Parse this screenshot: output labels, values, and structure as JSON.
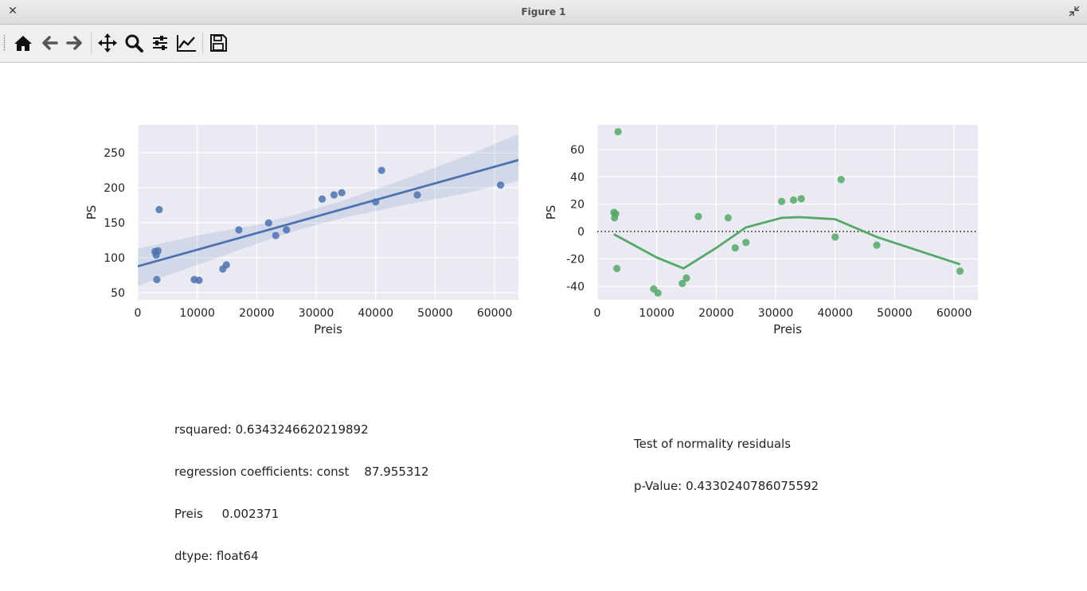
{
  "window": {
    "title": "Figure 1"
  },
  "toolbar": {
    "buttons": [
      {
        "name": "home-icon",
        "label": "Home"
      },
      {
        "name": "back-icon",
        "label": "Back"
      },
      {
        "name": "forward-icon",
        "label": "Forward"
      },
      {
        "name": "pan-icon",
        "label": "Pan"
      },
      {
        "name": "zoom-icon",
        "label": "Zoom"
      },
      {
        "name": "configure-subplots-icon",
        "label": "Subplots"
      },
      {
        "name": "edit-axis-icon",
        "label": "Customize"
      },
      {
        "name": "save-icon",
        "label": "Save"
      }
    ]
  },
  "colors": {
    "plot_bg": "#eaeaf2",
    "grid": "#ffffff",
    "blue": "#4c72b0",
    "green": "#55a868"
  },
  "chart_data": [
    {
      "type": "scatter",
      "title": "",
      "xlabel": "Preis",
      "ylabel": "PS",
      "xlim": [
        0,
        64000
      ],
      "ylim": [
        40,
        290
      ],
      "xticks": [
        0,
        10000,
        20000,
        30000,
        40000,
        50000,
        60000
      ],
      "yticks": [
        50,
        100,
        150,
        200,
        250
      ],
      "points": [
        [
          2900,
          109
        ],
        [
          3100,
          104
        ],
        [
          3200,
          69
        ],
        [
          3400,
          110
        ],
        [
          3600,
          169
        ],
        [
          9500,
          69
        ],
        [
          10300,
          68
        ],
        [
          14300,
          84
        ],
        [
          14900,
          90
        ],
        [
          17000,
          140
        ],
        [
          22000,
          150
        ],
        [
          23200,
          132
        ],
        [
          25000,
          140
        ],
        [
          31000,
          184
        ],
        [
          33000,
          190
        ],
        [
          34300,
          193
        ],
        [
          40000,
          180
        ],
        [
          41000,
          225
        ],
        [
          47000,
          190
        ],
        [
          61000,
          204
        ]
      ],
      "regression_line": {
        "intercept": 87.955312,
        "slope": 0.002371
      },
      "confidence_band": {
        "x": [
          0,
          10000,
          20000,
          27000,
          35000,
          45000,
          55000,
          64000
        ],
        "lower": [
          60,
          90,
          120,
          140,
          158,
          176,
          192,
          210
        ],
        "upper": [
          113,
          132,
          147,
          163,
          183,
          213,
          245,
          277
        ]
      },
      "grid": true
    },
    {
      "type": "scatter",
      "title": "",
      "xlabel": "Preis",
      "ylabel": "PS",
      "xlim": [
        0,
        64000
      ],
      "ylim": [
        -50,
        78
      ],
      "xticks": [
        0,
        10000,
        20000,
        30000,
        40000,
        50000,
        60000
      ],
      "yticks": [
        -40,
        -20,
        0,
        20,
        40,
        60
      ],
      "points": [
        [
          2800,
          14
        ],
        [
          2900,
          10
        ],
        [
          3100,
          13
        ],
        [
          3300,
          -27
        ],
        [
          3500,
          73
        ],
        [
          9500,
          -42
        ],
        [
          10200,
          -45
        ],
        [
          14300,
          -38
        ],
        [
          15000,
          -34
        ],
        [
          17000,
          11
        ],
        [
          22000,
          10
        ],
        [
          23200,
          -12
        ],
        [
          25000,
          -8
        ],
        [
          31000,
          22
        ],
        [
          33000,
          23
        ],
        [
          34300,
          24
        ],
        [
          40000,
          -4
        ],
        [
          41000,
          38
        ],
        [
          47000,
          -10
        ],
        [
          61000,
          -29
        ]
      ],
      "lowess_line": [
        [
          2800,
          -2
        ],
        [
          10000,
          -19
        ],
        [
          14500,
          -27
        ],
        [
          20000,
          -12
        ],
        [
          25000,
          3
        ],
        [
          31000,
          10
        ],
        [
          34000,
          10.5
        ],
        [
          40000,
          9
        ],
        [
          47000,
          -4
        ],
        [
          61000,
          -24
        ]
      ],
      "reference_line_y": 0,
      "grid": true
    }
  ],
  "text_blocks": {
    "left": [
      "rsquared: 0.6343246620219892",
      "regression coefficients: const    87.955312",
      "Preis     0.002371",
      "dtype: float64"
    ],
    "right": [
      "Test of normality residuals",
      "p-Value: 0.4330240786075592"
    ]
  }
}
